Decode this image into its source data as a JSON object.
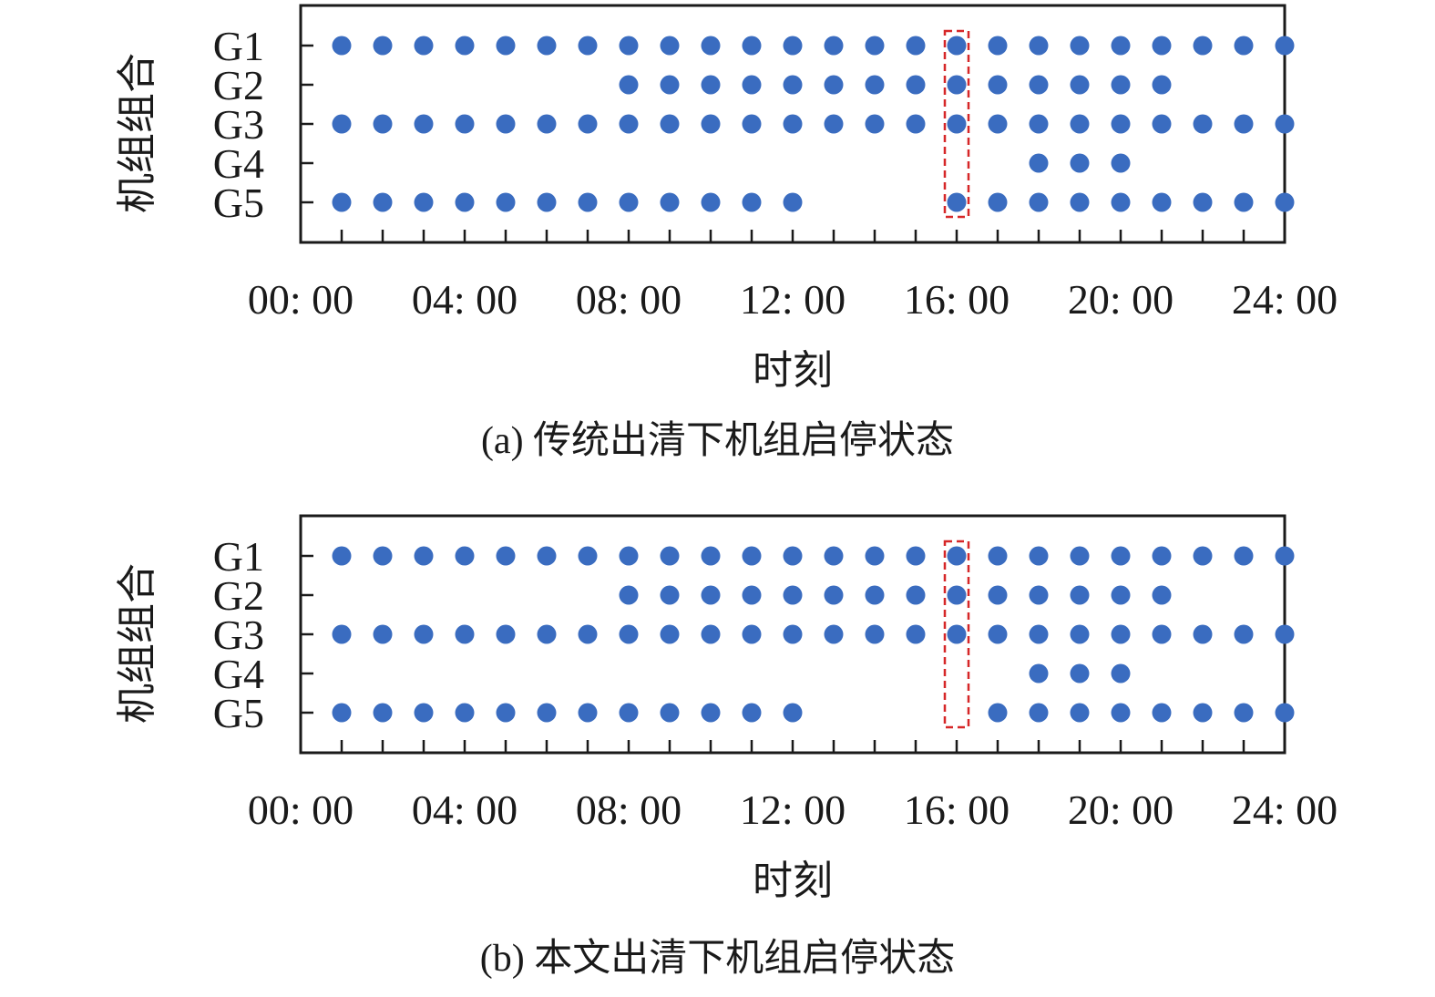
{
  "chart_data": [
    {
      "type": "scatter",
      "caption": "(a) 传统出清下机组启停状态",
      "xlabel": "时刻",
      "ylabel": "机组组合",
      "x_ticks": [
        "00: 00",
        "04: 00",
        "08: 00",
        "12: 00",
        "16: 00",
        "20: 00",
        "24: 00"
      ],
      "categories": [
        "G1",
        "G2",
        "G3",
        "G4",
        "G5"
      ],
      "hours": [
        1,
        2,
        3,
        4,
        5,
        6,
        7,
        8,
        9,
        10,
        11,
        12,
        13,
        14,
        15,
        16,
        17,
        18,
        19,
        20,
        21,
        22,
        23,
        24
      ],
      "xlim": [
        0,
        24
      ],
      "series": [
        {
          "unit": "G1",
          "on_hours": [
            1,
            2,
            3,
            4,
            5,
            6,
            7,
            8,
            9,
            10,
            11,
            12,
            13,
            14,
            15,
            16,
            17,
            18,
            19,
            20,
            21,
            22,
            23,
            24
          ]
        },
        {
          "unit": "G2",
          "on_hours": [
            8,
            9,
            10,
            11,
            12,
            13,
            14,
            15,
            16,
            17,
            18,
            19,
            20,
            21
          ]
        },
        {
          "unit": "G3",
          "on_hours": [
            1,
            2,
            3,
            4,
            5,
            6,
            7,
            8,
            9,
            10,
            11,
            12,
            13,
            14,
            15,
            16,
            17,
            18,
            19,
            20,
            21,
            22,
            23,
            24
          ]
        },
        {
          "unit": "G4",
          "on_hours": [
            18,
            19,
            20
          ]
        },
        {
          "unit": "G5",
          "on_hours": [
            1,
            2,
            3,
            4,
            5,
            6,
            7,
            8,
            9,
            10,
            11,
            12,
            16,
            17,
            18,
            19,
            20,
            21,
            22,
            23,
            24
          ]
        }
      ],
      "highlight_hour": 16,
      "marker_color": "#3a6cc0",
      "highlight_color": "#d62728"
    },
    {
      "type": "scatter",
      "caption": "(b) 本文出清下机组启停状态",
      "xlabel": "时刻",
      "ylabel": "机组组合",
      "x_ticks": [
        "00: 00",
        "04: 00",
        "08: 00",
        "12: 00",
        "16: 00",
        "20: 00",
        "24: 00"
      ],
      "categories": [
        "G1",
        "G2",
        "G3",
        "G4",
        "G5"
      ],
      "hours": [
        1,
        2,
        3,
        4,
        5,
        6,
        7,
        8,
        9,
        10,
        11,
        12,
        13,
        14,
        15,
        16,
        17,
        18,
        19,
        20,
        21,
        22,
        23,
        24
      ],
      "xlim": [
        0,
        24
      ],
      "series": [
        {
          "unit": "G1",
          "on_hours": [
            1,
            2,
            3,
            4,
            5,
            6,
            7,
            8,
            9,
            10,
            11,
            12,
            13,
            14,
            15,
            16,
            17,
            18,
            19,
            20,
            21,
            22,
            23,
            24
          ]
        },
        {
          "unit": "G2",
          "on_hours": [
            8,
            9,
            10,
            11,
            12,
            13,
            14,
            15,
            16,
            17,
            18,
            19,
            20,
            21
          ]
        },
        {
          "unit": "G3",
          "on_hours": [
            1,
            2,
            3,
            4,
            5,
            6,
            7,
            8,
            9,
            10,
            11,
            12,
            13,
            14,
            15,
            16,
            17,
            18,
            19,
            20,
            21,
            22,
            23,
            24
          ]
        },
        {
          "unit": "G4",
          "on_hours": [
            18,
            19,
            20
          ]
        },
        {
          "unit": "G5",
          "on_hours": [
            1,
            2,
            3,
            4,
            5,
            6,
            7,
            8,
            9,
            10,
            11,
            12,
            17,
            18,
            19,
            20,
            21,
            22,
            23,
            24
          ]
        }
      ],
      "highlight_hour": 16,
      "marker_color": "#3a6cc0",
      "highlight_color": "#d62728"
    }
  ]
}
